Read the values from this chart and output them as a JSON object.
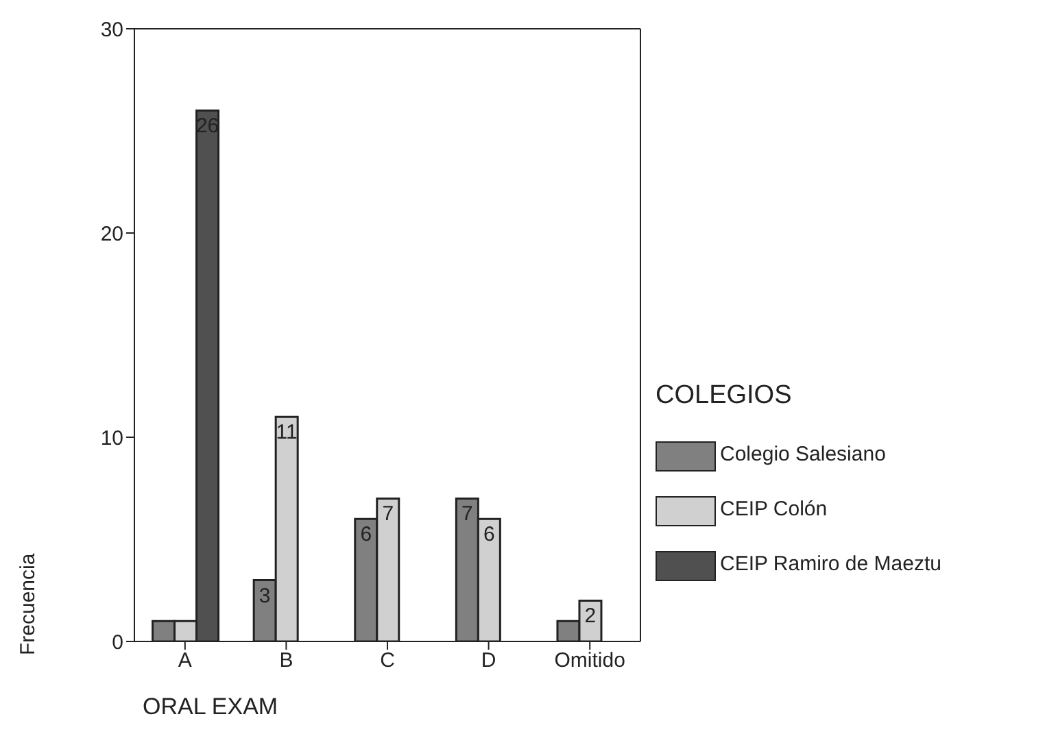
{
  "chart_data": {
    "type": "bar",
    "xlabel": "ORAL EXAM",
    "ylabel": "Frecuencia",
    "legend_title": "COLEGIOS",
    "categories": [
      "A",
      "B",
      "C",
      "D",
      "Omitido"
    ],
    "series": [
      {
        "name": "Colegio Salesiano",
        "color": "#808080",
        "values": [
          1,
          3,
          6,
          7,
          1
        ],
        "value_labels": [
          null,
          "3",
          "6",
          "7",
          null
        ]
      },
      {
        "name": "CEIP Colón",
        "color": "#d0d0d0",
        "values": [
          1,
          11,
          7,
          6,
          2
        ],
        "value_labels": [
          null,
          "11",
          "7",
          "6",
          "2"
        ]
      },
      {
        "name": "CEIP Ramiro de Maeztu",
        "color": "#505050",
        "values": [
          26,
          null,
          null,
          null,
          null
        ],
        "value_labels": [
          "26",
          null,
          null,
          null,
          null
        ]
      }
    ],
    "ylim": [
      0,
      30
    ],
    "yticks": [
      0,
      10,
      20,
      30
    ],
    "legend": "right"
  }
}
